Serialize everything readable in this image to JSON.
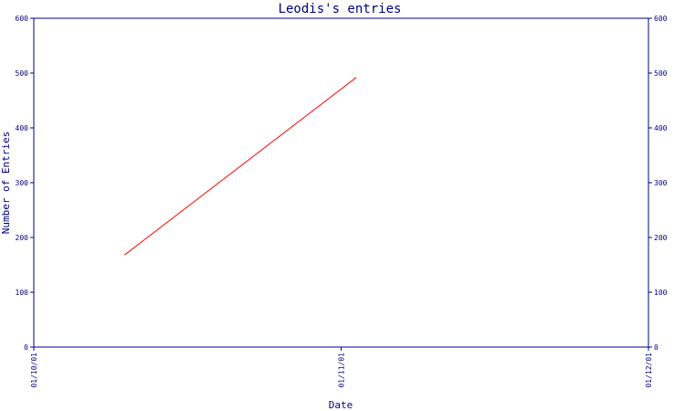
{
  "chart_data": {
    "type": "line",
    "title": "Leodis's entries",
    "xlabel": "Date",
    "ylabel": "Number of Entries",
    "x_ticks": [
      "01/10/01",
      "01/11/01",
      "01/12/01"
    ],
    "y_ticks": [
      "0",
      "100",
      "200",
      "300",
      "400",
      "500",
      "600"
    ],
    "ylim": [
      0,
      600
    ],
    "xlim": [
      "2001-10-01",
      "2001-12-01"
    ],
    "grid": false,
    "series": [
      {
        "x": [
          "2001-10-10",
          "2001-11-02"
        ],
        "values": [
          168,
          492
        ],
        "color": "#ff0000"
      }
    ],
    "colors": {
      "axes": "#000080",
      "series": "#ff0000",
      "background": "#ffffff"
    }
  }
}
